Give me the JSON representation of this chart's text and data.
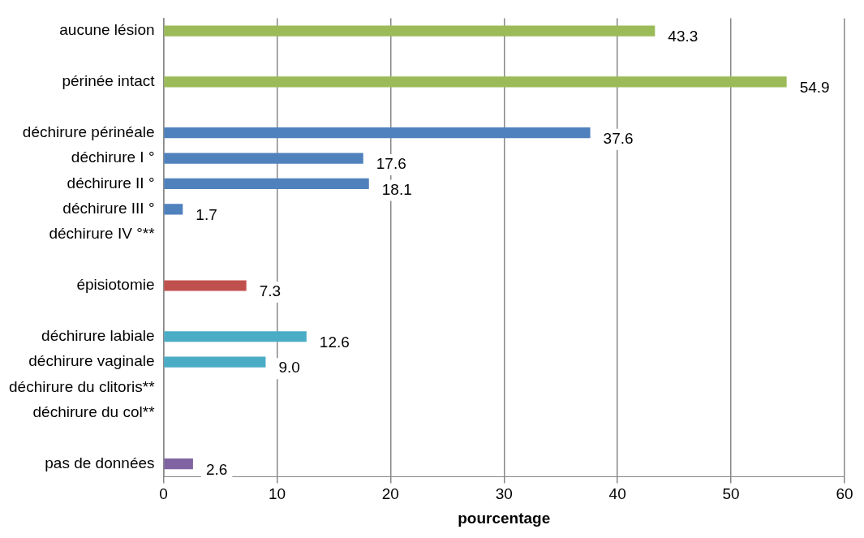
{
  "chart_data": {
    "type": "bar",
    "orientation": "horizontal",
    "categories": [
      "aucune lésion",
      null,
      "périnée intact",
      null,
      "déchirure périnéale",
      "déchirure I °",
      "déchirure II °",
      "déchirure III °",
      "déchirure IV °**",
      null,
      "épisiotomie",
      null,
      "déchirure labiale",
      "déchirure vaginale",
      "déchirure du clitoris**",
      "déchirure du col**",
      null,
      "pas de données"
    ],
    "values": [
      43.3,
      null,
      54.9,
      null,
      37.6,
      17.6,
      18.1,
      1.7,
      null,
      null,
      7.3,
      null,
      12.6,
      9.0,
      null,
      null,
      null,
      2.6
    ],
    "value_labels": [
      "43.3",
      null,
      "54.9",
      null,
      "37.6",
      "17.6",
      "18.1",
      "1.7",
      null,
      null,
      "7.3",
      null,
      "12.6",
      "9.0",
      null,
      null,
      null,
      "2.6"
    ],
    "colors": [
      "#9bbb59",
      "#9bbb59",
      "#9bbb59",
      "#4f81bd",
      "#4f81bd",
      "#4f81bd",
      "#4f81bd",
      "#4f81bd",
      "#4f81bd",
      "#c0504d",
      "#c0504d",
      "#4bacc6",
      "#4bacc6",
      "#4bacc6",
      "#4bacc6",
      "#4bacc6",
      "#8064a2",
      "#8064a2"
    ],
    "xlabel": "pourcentage",
    "xlim": [
      0,
      60
    ],
    "xticks": [
      0,
      10,
      20,
      30,
      40,
      50,
      60
    ],
    "grid": "x",
    "legend": false
  }
}
